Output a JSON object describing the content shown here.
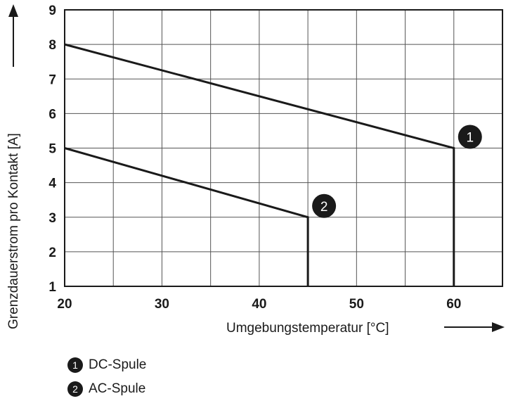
{
  "chart_data": {
    "type": "line",
    "title": "",
    "xlabel": "Umgebungstemperatur [°C]",
    "ylabel": "Grenzdauerstrom pro Kontakt [A]",
    "xlim": [
      20,
      65
    ],
    "ylim": [
      1,
      9
    ],
    "x_ticks": [
      20,
      30,
      40,
      50,
      60
    ],
    "y_ticks": [
      1,
      2,
      3,
      4,
      5,
      6,
      7,
      8,
      9
    ],
    "grid": true,
    "series": [
      {
        "marker": "1",
        "points": [
          [
            20,
            8
          ],
          [
            60,
            5
          ],
          [
            60,
            1
          ]
        ]
      },
      {
        "marker": "2",
        "points": [
          [
            20,
            5
          ],
          [
            45,
            3
          ],
          [
            45,
            1
          ]
        ]
      }
    ],
    "markers": [
      {
        "label": "1",
        "x": 60,
        "y": 5
      },
      {
        "label": "2",
        "x": 45,
        "y": 3
      }
    ],
    "legend": [
      {
        "badge": "1",
        "text": "DC-Spule"
      },
      {
        "badge": "2",
        "text": "AC-Spule"
      }
    ]
  }
}
